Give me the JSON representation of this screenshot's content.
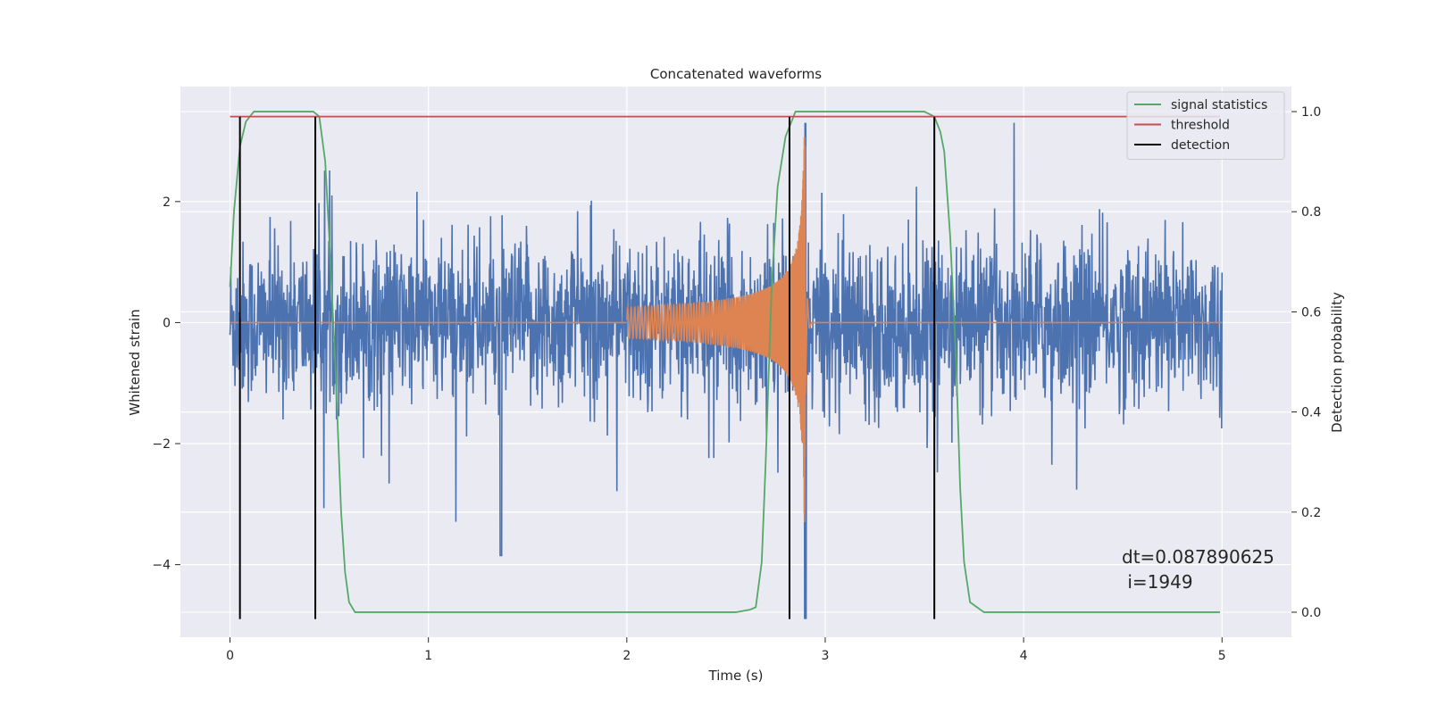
{
  "chart_data": {
    "type": "line",
    "title": "Concatenated waveforms",
    "xlabel": "Time (s)",
    "ylabel": "Whitened strain",
    "y2label": "Detection probability",
    "xlim": [
      -0.25,
      5.35
    ],
    "ylim": [
      -5.2,
      3.9
    ],
    "y2lim": [
      -0.05,
      1.05
    ],
    "xticks": [
      0,
      1,
      2,
      3,
      4,
      5
    ],
    "yticks": [
      -4,
      -2,
      0,
      2
    ],
    "y2ticks": [
      0.0,
      0.2,
      0.4,
      0.6,
      0.8,
      1.0
    ],
    "xtick_labels": [
      "0",
      "1",
      "2",
      "3",
      "4",
      "5"
    ],
    "ytick_labels": [
      "−4",
      "−2",
      "0",
      "2"
    ],
    "y2tick_labels": [
      "0.0",
      "0.2",
      "0.4",
      "0.6",
      "0.8",
      "1.0"
    ],
    "grid": true,
    "legend_position": "top-right",
    "series": [
      {
        "key": "strain",
        "axis": "left",
        "color": "#4c72b0",
        "kind": "noise",
        "x_range": [
          0,
          5
        ],
        "typical_amplitude": 1.2,
        "min": -4.9,
        "max": 3.3
      },
      {
        "key": "chirp",
        "axis": "left",
        "color": "#dd8452",
        "kind": "chirp",
        "x_range": [
          2,
          2.9
        ],
        "start_amplitude": 0.25,
        "peak_amplitude": 3.3,
        "end_value": 0
      },
      {
        "name": "signal statistics",
        "axis": "right",
        "color": "#55a868",
        "x": [
          0,
          0.02,
          0.05,
          0.08,
          0.12,
          0.2,
          0.3,
          0.38,
          0.42,
          0.45,
          0.48,
          0.5,
          0.53,
          0.56,
          0.58,
          0.6,
          0.63,
          0.7,
          1.0,
          2.0,
          2.55,
          2.62,
          2.65,
          2.68,
          2.7,
          2.73,
          2.76,
          2.8,
          2.85,
          2.9,
          3.0,
          3.3,
          3.5,
          3.55,
          3.58,
          3.6,
          3.63,
          3.66,
          3.68,
          3.7,
          3.73,
          3.8,
          4.0,
          4.99
        ],
        "values": [
          0.65,
          0.8,
          0.93,
          0.98,
          1.0,
          1.0,
          1.0,
          1.0,
          1.0,
          0.99,
          0.9,
          0.75,
          0.5,
          0.2,
          0.08,
          0.02,
          0.0,
          0.0,
          0.0,
          0.0,
          0.0,
          0.005,
          0.01,
          0.1,
          0.3,
          0.65,
          0.85,
          0.95,
          1.0,
          1.0,
          1.0,
          1.0,
          1.0,
          0.99,
          0.96,
          0.92,
          0.75,
          0.5,
          0.25,
          0.1,
          0.02,
          0.0,
          0.0,
          0.0
        ]
      },
      {
        "name": "threshold",
        "axis": "right",
        "color": "#c44e52",
        "x": [
          0,
          4.99
        ],
        "values": [
          0.99,
          0.99
        ]
      },
      {
        "name": "detection",
        "axis": "left",
        "color": "#000000",
        "kind": "vlines",
        "x": [
          0.05,
          0.43,
          2.82,
          3.55
        ],
        "ymin": -4.9,
        "ymax": 3.4
      }
    ],
    "annotation": {
      "line1": "dt=0.087890625",
      "line2": " i=1949",
      "x": 4.5,
      "y": -3.9
    }
  }
}
